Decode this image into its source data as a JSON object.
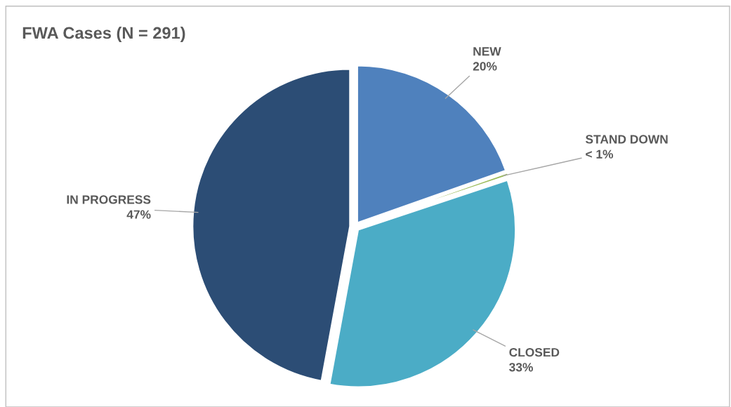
{
  "chart_data": {
    "type": "pie",
    "title": "FWA Cases (N = 291)",
    "categories": [
      "NEW",
      "STAND DOWN",
      "CLOSED",
      "IN PROGRESS"
    ],
    "values": [
      19.6,
      0.3,
      33.0,
      47.1
    ],
    "value_labels": [
      "20%",
      "< 1%",
      "33%",
      "47%"
    ],
    "colors": [
      "#4f81bd",
      "#9bbb59",
      "#4bacc6",
      "#2c4d75"
    ],
    "legend": false
  }
}
